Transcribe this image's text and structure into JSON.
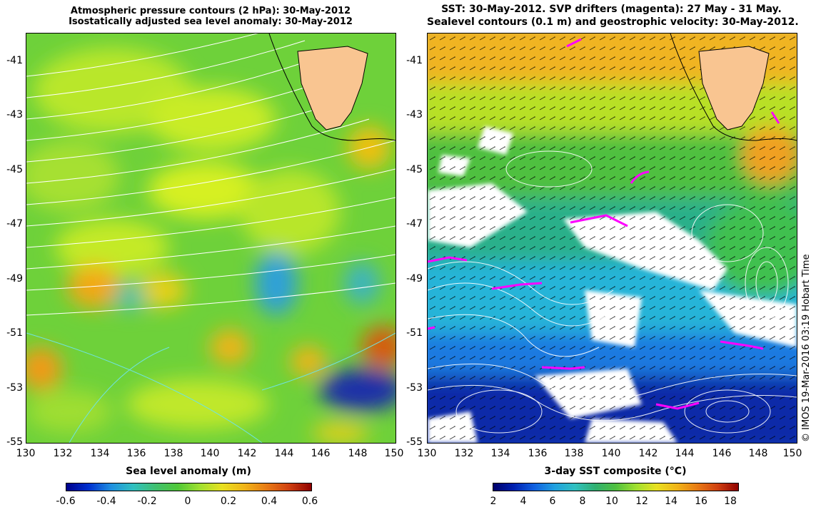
{
  "left_panel": {
    "title_line1": "Atmospheric pressure contours (2 hPa): 30-May-2012",
    "title_line2": "Isostatically adjusted sea level anomaly: 30-May-2012",
    "y_ticks": [
      "-41",
      "-43",
      "-45",
      "-47",
      "-49",
      "-51",
      "-53",
      "-55"
    ],
    "x_ticks": [
      "130",
      "132",
      "134",
      "136",
      "138",
      "140",
      "142",
      "144",
      "146",
      "148",
      "150"
    ],
    "colorbar_title": "Sea level anomaly (m)",
    "colorbar_labels": [
      "-0.6",
      "-0.4",
      "-0.2",
      "0",
      "0.2",
      "0.4",
      "0.6"
    ]
  },
  "right_panel": {
    "title_line1": "SST: 30-May-2012. SVP drifters (magenta): 27 May - 31 May.",
    "title_line2": "Sealevel contours (0.1 m) and geostrophic velocity: 30-May-2012.",
    "y_ticks": [
      "-41",
      "-43",
      "-45",
      "-47",
      "-49",
      "-51",
      "-53",
      "-55"
    ],
    "x_ticks": [
      "130",
      "132",
      "134",
      "136",
      "138",
      "140",
      "142",
      "144",
      "146",
      "148",
      "150"
    ],
    "colorbar_title": "3-day SST composite (°C)",
    "colorbar_labels": [
      "2",
      "4",
      "6",
      "8",
      "10",
      "12",
      "14",
      "16",
      "18"
    ]
  },
  "credit": "© IMOS 19-Mar-2016 03:19 Hobart Time",
  "colors": {
    "land": "#f9c591",
    "contour_white": "#ffffff",
    "contour_cyan": "#6fe3e3",
    "drifter": "#ff00ff"
  },
  "icons": {
    "land": "tasmania-land-shape",
    "arrows": "geostrophic-velocity-arrows"
  }
}
